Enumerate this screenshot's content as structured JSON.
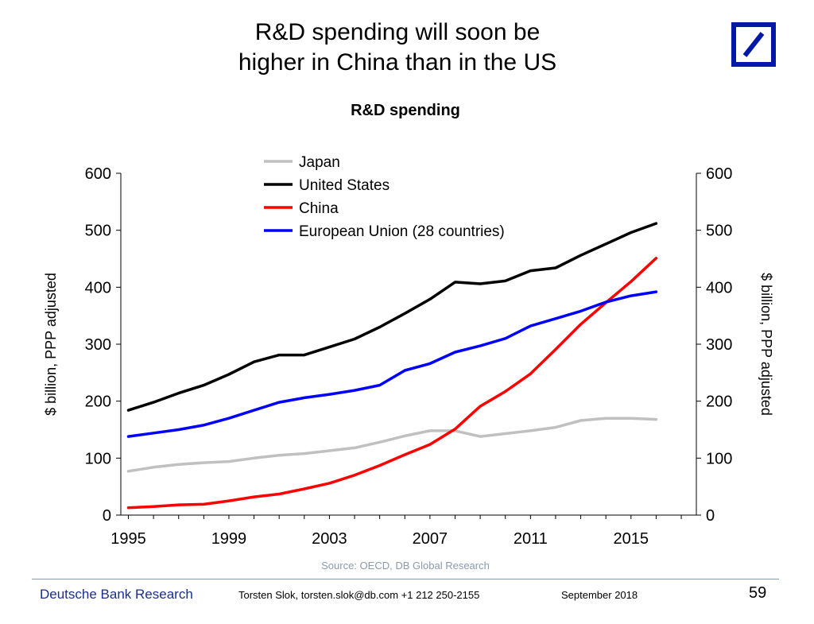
{
  "slide": {
    "title_line1": "R&D spending will soon be",
    "title_line2": "higher in China than in the US"
  },
  "logo": {
    "name": "deutsche-bank-logo",
    "color": "#0018a8"
  },
  "footer": {
    "brand": "Deutsche Bank Research",
    "author": "Torsten Slok, torsten.slok@db.com  +1 212 250-2155",
    "date": "September  2018",
    "page": "59"
  },
  "chart_data": {
    "type": "line",
    "title": "R&D spending",
    "ylabel_left": "$ billion, PPP adjusted",
    "ylabel_right": "$ billion, PPP adjusted",
    "ylim": [
      0,
      600
    ],
    "yticks": [
      0,
      100,
      200,
      300,
      400,
      500,
      600
    ],
    "xlim": [
      1994.7,
      2017.6
    ],
    "xticks": [
      1995,
      1999,
      2003,
      2007,
      2011,
      2015
    ],
    "grid": false,
    "legend_position": "top-left",
    "source": "Source: OECD, DB Global Research",
    "x": [
      1995,
      1996,
      1997,
      1998,
      1999,
      2000,
      2001,
      2002,
      2003,
      2004,
      2005,
      2006,
      2007,
      2008,
      2009,
      2010,
      2011,
      2012,
      2013,
      2014,
      2015,
      2016
    ],
    "series": [
      {
        "name": "Japan",
        "color": "#c0c0c0",
        "values": [
          77,
          84,
          89,
          92,
          94,
          100,
          105,
          108,
          113,
          118,
          128,
          139,
          148,
          148,
          138,
          143,
          148,
          154,
          166,
          170,
          170,
          168
        ]
      },
      {
        "name": "United States",
        "color": "#000000",
        "values": [
          184,
          198,
          214,
          228,
          247,
          269,
          281,
          281,
          295,
          309,
          330,
          354,
          379,
          409,
          406,
          411,
          429,
          434,
          456,
          476,
          496,
          512
        ]
      },
      {
        "name": "China",
        "color": "#ff0000",
        "values": [
          13,
          15,
          18,
          19,
          25,
          32,
          37,
          46,
          56,
          70,
          87,
          106,
          124,
          151,
          191,
          217,
          248,
          291,
          335,
          373,
          410,
          451
        ]
      },
      {
        "name": "European Union (28 countries)",
        "color": "#0000ff",
        "values": [
          138,
          144,
          150,
          158,
          170,
          184,
          198,
          206,
          212,
          219,
          228,
          254,
          266,
          286,
          297,
          310,
          332,
          345,
          358,
          374,
          385,
          392
        ]
      }
    ]
  }
}
